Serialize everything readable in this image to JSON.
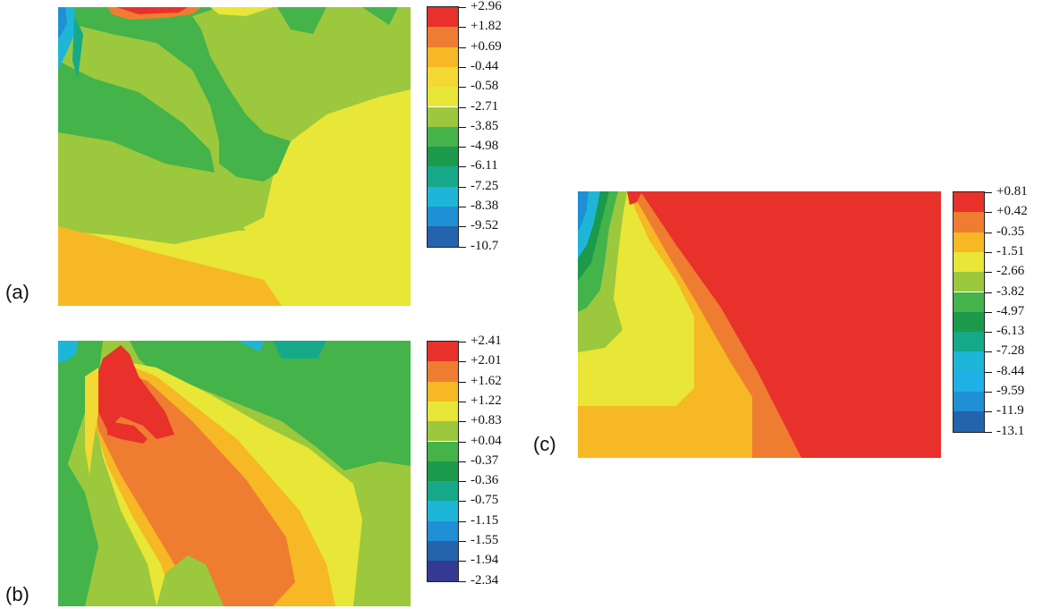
{
  "panels": [
    {
      "label": "(a)",
      "legend": [
        {
          "value": "+2.96",
          "color": "#e8312b"
        },
        {
          "value": "+1.82",
          "color": "#ef7d31"
        },
        {
          "value": "+0.69",
          "color": "#f6b824"
        },
        {
          "value": "-0.44",
          "color": "#f2d934"
        },
        {
          "value": "-0.58",
          "color": "#e8e636"
        },
        {
          "value": "-2.71",
          "color": "#9bc83d"
        },
        {
          "value": "-3.85",
          "color": "#43b34a"
        },
        {
          "value": "-4.98",
          "color": "#1c9a4c"
        },
        {
          "value": "-6.11",
          "color": "#16a989"
        },
        {
          "value": "-7.25",
          "color": "#1eb6d8"
        },
        {
          "value": "-8.38",
          "color": "#1f8fd6"
        },
        {
          "value": "-9.52",
          "color": "#2463ad"
        },
        {
          "value": "-10.7",
          "color": "#343a92"
        }
      ]
    },
    {
      "label": "(b)",
      "legend": [
        {
          "value": "+2.41",
          "color": "#e8312b"
        },
        {
          "value": "+2.01",
          "color": "#ef7d31"
        },
        {
          "value": "+1.62",
          "color": "#f6b824"
        },
        {
          "value": "+1.22",
          "color": "#e8e636"
        },
        {
          "value": "+0.83",
          "color": "#9bc83d"
        },
        {
          "value": "+0.04",
          "color": "#43b34a"
        },
        {
          "value": "-0.37",
          "color": "#1c9a4c"
        },
        {
          "value": "-0.36",
          "color": "#16a989"
        },
        {
          "value": "-0.75",
          "color": "#1eb6d8"
        },
        {
          "value": "-1.15",
          "color": "#1f8fd6"
        },
        {
          "value": "-1.55",
          "color": "#2463ad"
        },
        {
          "value": "-1.94",
          "color": "#343a92"
        },
        {
          "value": "-2.34",
          "color": "#343a92"
        }
      ]
    },
    {
      "label": "(c)",
      "legend": [
        {
          "value": "+0.81",
          "color": "#e8312b"
        },
        {
          "value": "+0.42",
          "color": "#ef7d31"
        },
        {
          "value": "-0.35",
          "color": "#f6b824"
        },
        {
          "value": "-1.51",
          "color": "#e8e636"
        },
        {
          "value": "-2.66",
          "color": "#9bc83d"
        },
        {
          "value": "-3.82",
          "color": "#43b34a"
        },
        {
          "value": "-4.97",
          "color": "#1c9a4c"
        },
        {
          "value": "-6.13",
          "color": "#16a989"
        },
        {
          "value": "-7.28",
          "color": "#1eb6d8"
        },
        {
          "value": "-8.44",
          "color": "#1fb0e6"
        },
        {
          "value": "-9.59",
          "color": "#1f8fd6"
        },
        {
          "value": "-11.9",
          "color": "#2463ad"
        },
        {
          "value": "-13.1",
          "color": "#343a92"
        }
      ]
    }
  ]
}
